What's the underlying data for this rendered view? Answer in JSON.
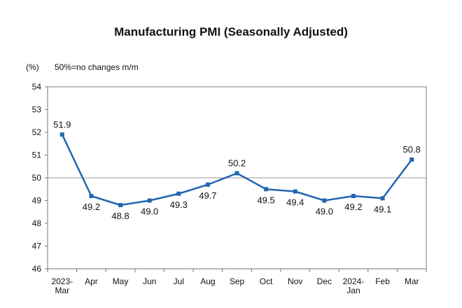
{
  "chart_data": {
    "type": "line",
    "title": "Manufacturing PMI (Seasonally Adjusted)",
    "unit_label": "(%)",
    "note": "50%=no changes m/m",
    "categories": [
      [
        "2023-",
        "Mar"
      ],
      [
        "Apr"
      ],
      [
        "May"
      ],
      [
        "Jun"
      ],
      [
        "Jul"
      ],
      [
        "Aug"
      ],
      [
        "Sep"
      ],
      [
        "Oct"
      ],
      [
        "Nov"
      ],
      [
        "Dec"
      ],
      [
        "2024-",
        "Jan"
      ],
      [
        "Feb"
      ],
      [
        "Mar"
      ]
    ],
    "series": [
      {
        "values": [
          51.9,
          49.2,
          48.8,
          49.0,
          49.3,
          49.7,
          50.2,
          49.5,
          49.4,
          49.0,
          49.2,
          49.1,
          50.8
        ]
      }
    ],
    "data_labels": [
      "51.9",
      "49.2",
      "48.8",
      "49.0",
      "49.3",
      "49.7",
      "50.2",
      "49.5",
      "49.4",
      "49.0",
      "49.2",
      "49.1",
      "50.8"
    ],
    "label_position": [
      "above",
      "below",
      "below",
      "below",
      "below",
      "below",
      "above",
      "below",
      "below",
      "below",
      "below",
      "below",
      "above"
    ],
    "ylim": [
      46,
      54
    ],
    "yticks": [
      "46",
      "47",
      "48",
      "49",
      "50",
      "51",
      "52",
      "53",
      "54"
    ],
    "reference_line": 50,
    "grid": false,
    "line_color": "#2266b3",
    "reference_color": "#999999"
  }
}
